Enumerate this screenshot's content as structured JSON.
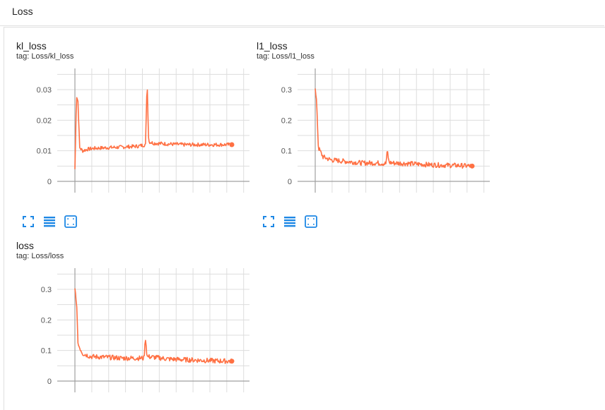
{
  "header": {
    "title": "Loss"
  },
  "colors": {
    "line": "#ff7043",
    "grid": "#dddddd",
    "axis": "#a0a0a0",
    "icon": "#1e88e5"
  },
  "toolbar": {
    "icons": [
      "fullscreen-icon",
      "data-table-icon",
      "fit-domain-icon"
    ]
  },
  "cards": [
    {
      "title": "kl_loss",
      "tag": "tag: Loss/kl_loss",
      "chart_data": {
        "type": "line",
        "title": "kl_loss",
        "ylim": [
          0,
          0.03
        ],
        "yticks": [
          "0",
          "0.01",
          "0.02",
          "0.03"
        ],
        "grid": true,
        "series": [
          {
            "x": [
              0,
              0.01,
              0.02,
              0.03,
              0.05,
              0.08,
              0.12,
              0.2,
              0.3,
              0.4,
              0.45,
              0.46,
              0.47,
              0.5,
              0.6,
              0.7,
              0.8,
              0.9,
              1.0
            ],
            "y": [
              0.004,
              0.028,
              0.026,
              0.011,
              0.01,
              0.0105,
              0.0108,
              0.011,
              0.0112,
              0.0115,
              0.012,
              0.033,
              0.013,
              0.0125,
              0.0122,
              0.012,
              0.012,
              0.012,
              0.012
            ],
            "noise": 0.0006
          }
        ]
      }
    },
    {
      "title": "l1_loss",
      "tag": "tag: Loss/l1_loss",
      "chart_data": {
        "type": "line",
        "title": "l1_loss",
        "ylim": [
          0,
          0.3
        ],
        "yticks": [
          "0",
          "0.1",
          "0.2",
          "0.3"
        ],
        "grid": true,
        "series": [
          {
            "x": [
              0,
              0.01,
              0.015,
              0.02,
              0.05,
              0.1,
              0.2,
              0.3,
              0.4,
              0.45,
              0.46,
              0.47,
              0.5,
              0.6,
              0.7,
              0.8,
              0.9,
              1.0
            ],
            "y": [
              0.3,
              0.25,
              0.18,
              0.11,
              0.08,
              0.07,
              0.065,
              0.06,
              0.06,
              0.058,
              0.1,
              0.062,
              0.06,
              0.058,
              0.055,
              0.053,
              0.052,
              0.05
            ],
            "noise": 0.008
          }
        ]
      }
    },
    {
      "title": "loss",
      "tag": "tag: Loss/loss",
      "chart_data": {
        "type": "line",
        "title": "loss",
        "ylim": [
          0,
          0.3
        ],
        "yticks": [
          "0",
          "0.1",
          "0.2",
          "0.3"
        ],
        "grid": true,
        "series": [
          {
            "x": [
              0,
              0.01,
              0.015,
              0.02,
              0.05,
              0.1,
              0.2,
              0.3,
              0.4,
              0.44,
              0.45,
              0.46,
              0.5,
              0.6,
              0.7,
              0.8,
              0.9,
              1.0
            ],
            "y": [
              0.3,
              0.26,
              0.19,
              0.12,
              0.09,
              0.08,
              0.078,
              0.075,
              0.075,
              0.075,
              0.14,
              0.08,
              0.078,
              0.072,
              0.07,
              0.068,
              0.066,
              0.065
            ],
            "noise": 0.008
          }
        ]
      }
    }
  ]
}
